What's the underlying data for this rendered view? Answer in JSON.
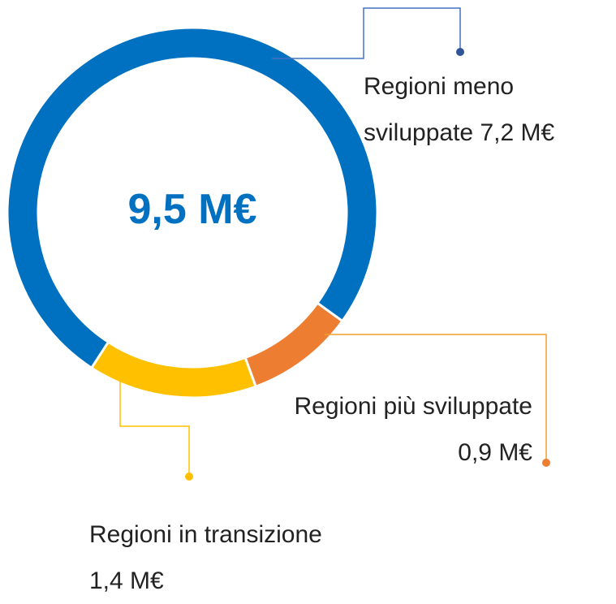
{
  "chart_data": {
    "type": "donut",
    "center_label": "9,5 M€",
    "categories": [
      "Regioni meno sviluppate",
      "Regioni più sviluppate",
      "Regioni in transizione"
    ],
    "values": [
      7.2,
      0.9,
      1.4
    ],
    "value_labels": [
      "7,2 M€",
      "0,9 M€",
      "1,4 M€"
    ],
    "colors": [
      "#0070c0",
      "#ed7d31",
      "#ffc000"
    ]
  }
}
